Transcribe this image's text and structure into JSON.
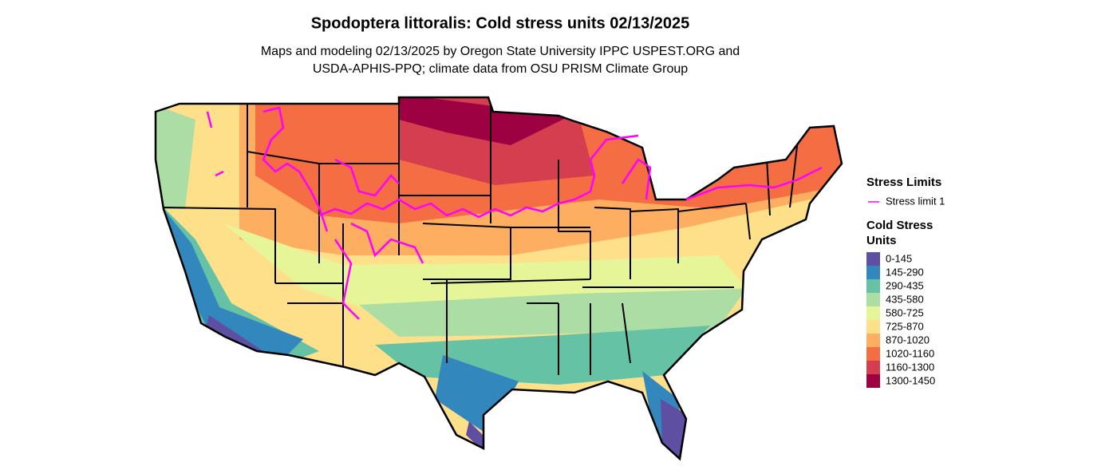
{
  "title": "Spodoptera littoralis: Cold stress units 02/13/2025",
  "subtitle": [
    "Maps and modeling 02/13/2025 by Oregon State University IPPC USPEST.ORG and",
    "USDA-APHIS-PPQ; climate data from OSU PRISM Climate Group"
  ],
  "legend": {
    "limits_title": "Stress Limits",
    "limits": [
      {
        "label": "Stress limit 1",
        "color": "#ff00ff"
      }
    ],
    "units_title": [
      "Cold Stress",
      "Units"
    ],
    "classes": [
      {
        "label": "0-145",
        "color": "#5e4fa2"
      },
      {
        "label": "145-290",
        "color": "#3288bd"
      },
      {
        "label": "290-435",
        "color": "#66c2a5"
      },
      {
        "label": "435-580",
        "color": "#abdda4"
      },
      {
        "label": "580-725",
        "color": "#e6f598"
      },
      {
        "label": "725-870",
        "color": "#fee08b"
      },
      {
        "label": "870-1020",
        "color": "#fdae61"
      },
      {
        "label": "1020-1160",
        "color": "#f46d43"
      },
      {
        "label": "1160-1300",
        "color": "#d53e4f"
      },
      {
        "label": "1300-1450",
        "color": "#9e0142"
      }
    ]
  }
}
